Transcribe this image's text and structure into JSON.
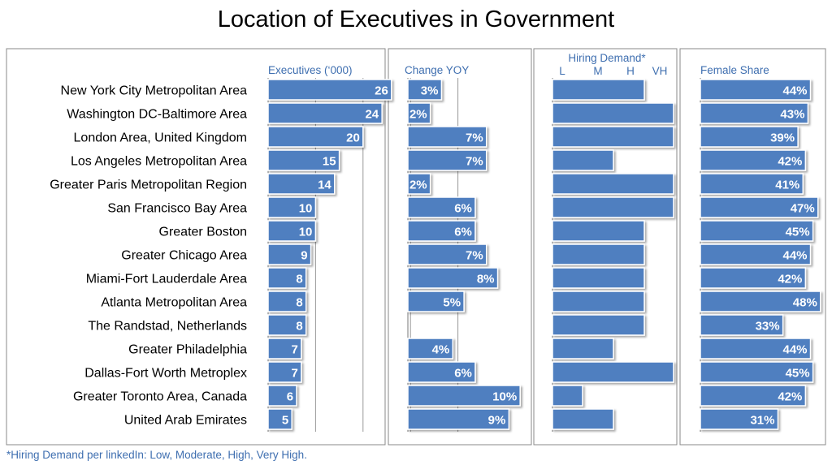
{
  "title": "Location of Executives in Government",
  "footnote": "*Hiring Demand per linkedIn: Low, Moderate, High, Very High.",
  "bar_color": "#4f7fc0",
  "chart_data": {
    "type": "bar",
    "orientation": "horizontal",
    "title": "Location of Executives in Government",
    "categories": [
      "New York City Metropolitan Area",
      "Washington DC-Baltimore Area",
      "London Area, United Kingdom",
      "Los Angeles Metropolitan Area",
      "Greater Paris Metropolitan Region",
      "San Francisco Bay Area",
      "Greater Boston",
      "Greater Chicago Area",
      "Miami-Fort Lauderdale Area",
      "Atlanta Metropolitan Area",
      "The Randstad, Netherlands",
      "Greater Philadelphia",
      "Dallas-Fort Worth Metroplex",
      "Greater Toronto Area, Canada",
      "United Arab Emirates"
    ],
    "panels": [
      {
        "name": "Executives ('000)",
        "header": "Executives (‘000)",
        "values": [
          26,
          24,
          20,
          15,
          14,
          10,
          10,
          9,
          8,
          8,
          8,
          7,
          7,
          6,
          5
        ],
        "labels": [
          "26",
          "24",
          "20",
          "15",
          "14",
          "10",
          "10",
          "9",
          "8",
          "8",
          "8",
          "7",
          "7",
          "6",
          "5"
        ],
        "xlim": [
          0,
          50
        ]
      },
      {
        "name": "Change YOY",
        "header": "Change YOY",
        "values": [
          3,
          2,
          7,
          7,
          2,
          6,
          6,
          7,
          8,
          5,
          null,
          4,
          6,
          10,
          9
        ],
        "labels": [
          "3%",
          "2%",
          "7%",
          "7%",
          "2%",
          "6%",
          "6%",
          "7%",
          "8%",
          "5%",
          "",
          "4%",
          "6%",
          "10%",
          "9%"
        ],
        "unit": "%",
        "xlim": [
          0,
          11
        ]
      },
      {
        "name": "Hiring Demand*",
        "header": "Hiring Demand*",
        "scale": [
          "L",
          "M",
          "H",
          "VH"
        ],
        "values": [
          3,
          4,
          4,
          2,
          4,
          4,
          3,
          3,
          3,
          3,
          3,
          2,
          4,
          1,
          2
        ],
        "value_levels": [
          "H",
          "VH",
          "VH",
          "M",
          "VH",
          "VH",
          "H",
          "H",
          "H",
          "H",
          "H",
          "M",
          "VH",
          "L",
          "M"
        ],
        "xlim": [
          0,
          4
        ]
      },
      {
        "name": "Female Share",
        "header": "Female Share",
        "values": [
          44,
          43,
          39,
          42,
          41,
          47,
          45,
          44,
          42,
          48,
          33,
          44,
          45,
          42,
          31
        ],
        "labels": [
          "44%",
          "43%",
          "39%",
          "42%",
          "41%",
          "47%",
          "45%",
          "44%",
          "42%",
          "48%",
          "33%",
          "44%",
          "45%",
          "42%",
          "31%"
        ],
        "unit": "%",
        "xlim": [
          0,
          50
        ]
      }
    ]
  }
}
